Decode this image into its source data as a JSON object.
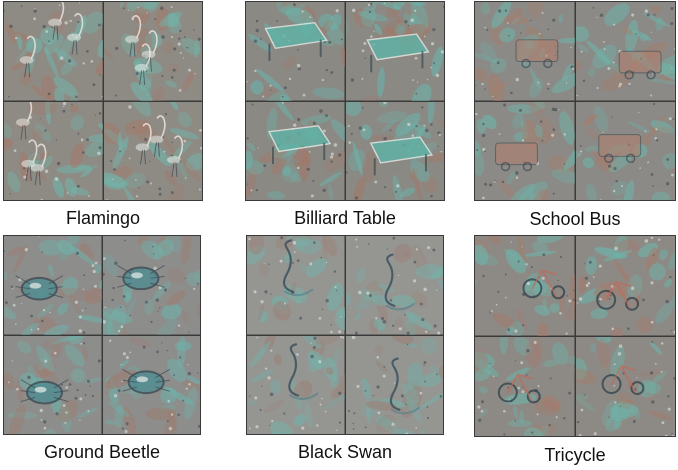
{
  "figure": {
    "panels": [
      {
        "id": "flamingo",
        "caption": "Flamingo",
        "base": "#8e8b84",
        "accent": "#6fb8ad",
        "warm": "#a5786a",
        "subject": "bird"
      },
      {
        "id": "billiard-table",
        "caption": "Billiard Table",
        "base": "#8a8984",
        "accent": "#69b6ad",
        "warm": "#a47767",
        "subject": "table"
      },
      {
        "id": "school-bus",
        "caption": "School Bus",
        "base": "#8b8a86",
        "accent": "#6cb6ac",
        "warm": "#a87c6a",
        "subject": "bus"
      },
      {
        "id": "ground-beetle",
        "caption": "Ground Beetle",
        "base": "#8d8d8b",
        "accent": "#6eb3ab",
        "warm": "#9e7c70",
        "subject": "beetle"
      },
      {
        "id": "black-swan",
        "caption": "Black Swan",
        "base": "#959592",
        "accent": "#74b2aa",
        "warm": "#9b8378",
        "subject": "swan"
      },
      {
        "id": "tricycle",
        "caption": "Tricycle",
        "base": "#8d8a85",
        "accent": "#6cb5ab",
        "warm": "#a67a6b",
        "subject": "tricycle"
      }
    ]
  }
}
